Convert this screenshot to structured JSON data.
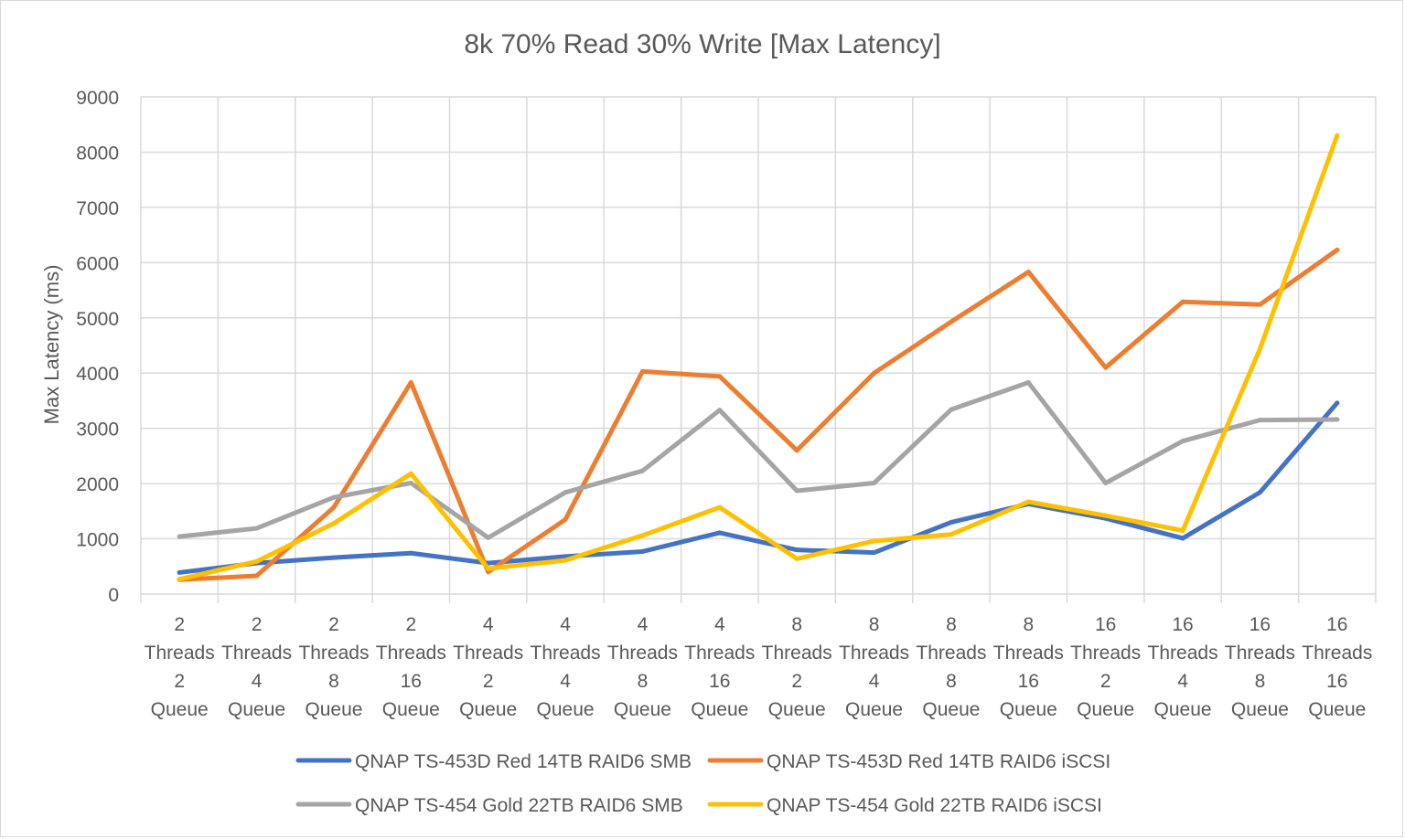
{
  "chart_data": {
    "type": "line",
    "title": "8k 70% Read 30% Write [Max Latency]",
    "xlabel": "",
    "ylabel": "Max Latency (ms)",
    "ylim": [
      0,
      9000
    ],
    "yticks": [
      0,
      1000,
      2000,
      3000,
      4000,
      5000,
      6000,
      7000,
      8000,
      9000
    ],
    "grid": true,
    "legend_position": "bottom",
    "categories": [
      [
        "2",
        "Threads",
        "2",
        "Queue"
      ],
      [
        "2",
        "Threads",
        "4",
        "Queue"
      ],
      [
        "2",
        "Threads",
        "8",
        "Queue"
      ],
      [
        "2",
        "Threads",
        "16",
        "Queue"
      ],
      [
        "4",
        "Threads",
        "2",
        "Queue"
      ],
      [
        "4",
        "Threads",
        "4",
        "Queue"
      ],
      [
        "4",
        "Threads",
        "8",
        "Queue"
      ],
      [
        "4",
        "Threads",
        "16",
        "Queue"
      ],
      [
        "8",
        "Threads",
        "2",
        "Queue"
      ],
      [
        "8",
        "Threads",
        "4",
        "Queue"
      ],
      [
        "8",
        "Threads",
        "8",
        "Queue"
      ],
      [
        "8",
        "Threads",
        "16",
        "Queue"
      ],
      [
        "16",
        "Threads",
        "2",
        "Queue"
      ],
      [
        "16",
        "Threads",
        "4",
        "Queue"
      ],
      [
        "16",
        "Threads",
        "8",
        "Queue"
      ],
      [
        "16",
        "Threads",
        "16",
        "Queue"
      ]
    ],
    "series": [
      {
        "name": "QNAP TS-453D Red 14TB RAID6 SMB",
        "color": "#4472c4",
        "values": [
          390,
          560,
          660,
          740,
          560,
          680,
          770,
          1110,
          800,
          750,
          1300,
          1630,
          1370,
          1010,
          1840,
          3460
        ]
      },
      {
        "name": "QNAP TS-453D Red 14TB RAID6 iSCSI",
        "color": "#ed7d31",
        "values": [
          260,
          330,
          1570,
          3830,
          400,
          1350,
          4030,
          3940,
          2600,
          4000,
          4930,
          5830,
          4100,
          5290,
          5240,
          6230
        ]
      },
      {
        "name": "QNAP TS-454 Gold 22TB RAID6 SMB",
        "color": "#a5a5a5",
        "values": [
          1040,
          1190,
          1750,
          2010,
          1020,
          1840,
          2230,
          3330,
          1870,
          2010,
          3340,
          3830,
          2010,
          2770,
          3150,
          3160
        ]
      },
      {
        "name": "QNAP TS-454 Gold 22TB RAID6 iSCSI",
        "color": "#ffc000",
        "values": [
          270,
          590,
          1280,
          2180,
          460,
          610,
          1060,
          1570,
          640,
          960,
          1080,
          1670,
          1420,
          1150,
          4440,
          8300
        ]
      }
    ]
  }
}
